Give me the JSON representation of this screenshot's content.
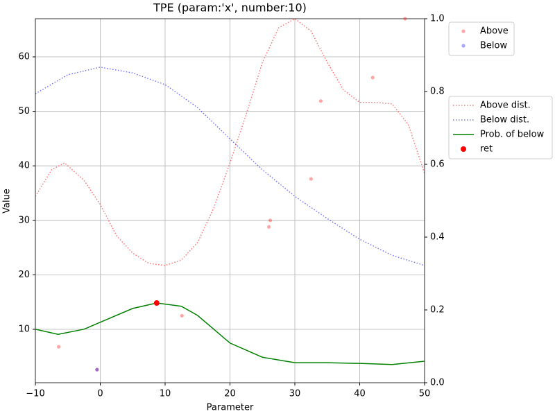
{
  "chart_data": {
    "type": "line",
    "title": "TPE (param:'x', number:10)",
    "xlabel": "Parameter",
    "ylabel": "Value",
    "xlim": [
      -10,
      50
    ],
    "xticks": [
      {
        "value": -10,
        "label": "−10"
      },
      0,
      10,
      20,
      30,
      40,
      50
    ],
    "ylim": [
      0.2,
      67.0
    ],
    "yticks": [
      10,
      20,
      30,
      40,
      50,
      60
    ],
    "y2lim": [
      0,
      1
    ],
    "y2ticks": [
      {
        "value": 0,
        "label": "0.0"
      },
      0.2,
      0.4,
      0.6,
      0.8,
      {
        "value": 1,
        "label": "1.0"
      }
    ],
    "grid": true,
    "series": [
      {
        "name": "Above",
        "kind": "points",
        "axis": "y",
        "color": "#ff0000",
        "alpha": 0.35,
        "x": [
          -6.4,
          -0.5,
          12.6,
          26,
          26.2,
          32.5,
          34,
          42,
          47
        ],
        "values": [
          6.8,
          2.6,
          12.5,
          28.8,
          30,
          37.6,
          51.9,
          56.2,
          67.0
        ]
      },
      {
        "name": "Below",
        "kind": "points",
        "axis": "y",
        "color": "#0000ff",
        "alpha": 0.35,
        "x": [
          -0.5
        ],
        "values": [
          2.6
        ]
      },
      {
        "name": "Above dist.",
        "kind": "dotted",
        "axis": "y2",
        "color": "#ff0000",
        "alpha": 0.55,
        "x": [
          -10,
          -7.5,
          -5.5,
          -2.5,
          0,
          2.5,
          5,
          7.5,
          10,
          12.5,
          15,
          17.5,
          20,
          22.5,
          25,
          27.5,
          30,
          32.5,
          35,
          37.5,
          40,
          42.5,
          45,
          47.5,
          50
        ],
        "values": [
          0.512,
          0.585,
          0.604,
          0.556,
          0.49,
          0.404,
          0.356,
          0.328,
          0.322,
          0.337,
          0.385,
          0.48,
          0.604,
          0.737,
          0.88,
          0.975,
          1.0,
          0.966,
          0.88,
          0.804,
          0.77,
          0.77,
          0.766,
          0.709,
          0.575
        ]
      },
      {
        "name": "Below dist.",
        "kind": "dotted",
        "axis": "y2",
        "color": "#0000ff",
        "alpha": 0.55,
        "x": [
          -10,
          -5,
          0,
          5,
          10,
          15,
          20,
          25,
          30,
          35,
          40,
          45,
          50
        ],
        "values": [
          0.794,
          0.846,
          0.867,
          0.851,
          0.819,
          0.756,
          0.67,
          0.585,
          0.512,
          0.451,
          0.394,
          0.35,
          0.322
        ]
      },
      {
        "name": "Prob. of below",
        "kind": "solid",
        "axis": "y2",
        "color": "#008000",
        "alpha": 1,
        "x": [
          -10,
          -6.5,
          -2.5,
          0,
          5,
          8.7,
          12.5,
          15,
          20,
          25,
          30,
          35,
          40,
          45,
          50
        ],
        "values": [
          0.147,
          0.133,
          0.147,
          0.166,
          0.204,
          0.219,
          0.21,
          0.185,
          0.109,
          0.07,
          0.055,
          0.055,
          0.053,
          0.05,
          0.059
        ]
      },
      {
        "name": "ret",
        "kind": "points",
        "axis": "y2",
        "color": "#ff0000",
        "alpha": 1,
        "size": 4,
        "x": [
          8.7
        ],
        "values": [
          0.219
        ]
      }
    ]
  }
}
